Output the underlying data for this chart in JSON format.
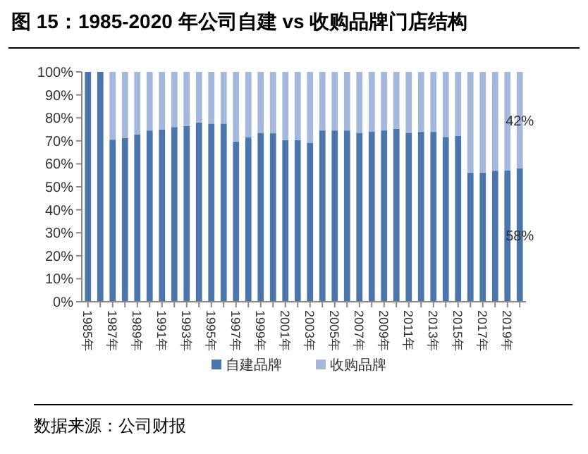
{
  "chart_data": {
    "type": "bar",
    "stacked": true,
    "title": "图 15：1985-2020 年公司自建 vs 收购品牌门店结构",
    "categories": [
      "1985年",
      null,
      "1987年",
      null,
      "1989年",
      null,
      "1991年",
      null,
      "1993年",
      null,
      "1995年",
      null,
      "1997年",
      null,
      "1999年",
      null,
      "2001年",
      null,
      "2003年",
      null,
      "2005年",
      null,
      "2007年",
      null,
      "2009年",
      null,
      "2011年",
      null,
      "2013年",
      null,
      "2015年",
      null,
      "2017年",
      null,
      "2019年",
      null
    ],
    "series": [
      {
        "name": "自建品牌",
        "color": "#4a76ab",
        "values": [
          100,
          100,
          70.5,
          71.3,
          72.7,
          74.5,
          75,
          76,
          76.5,
          78,
          77.5,
          77.5,
          69.7,
          71.5,
          73.5,
          73.3,
          70.3,
          70.3,
          69.2,
          74.5,
          74.5,
          74.5,
          73.5,
          74.1,
          74.5,
          75.2,
          73.5,
          73.9,
          73.9,
          71.7,
          72.1,
          56.2,
          56.2,
          57,
          57.2,
          58
        ],
        "value_labels": [
          null,
          null,
          null,
          null,
          null,
          null,
          null,
          null,
          null,
          null,
          null,
          null,
          null,
          null,
          null,
          null,
          null,
          null,
          null,
          null,
          null,
          null,
          null,
          null,
          null,
          null,
          null,
          null,
          null,
          null,
          null,
          null,
          null,
          null,
          null,
          "58%"
        ]
      },
      {
        "name": "收购品牌",
        "color": "#a3b8db",
        "values": [
          0,
          0,
          29.5,
          28.7,
          27.3,
          25.5,
          25,
          24,
          23.5,
          22,
          22.5,
          22.5,
          30.3,
          28.5,
          26.5,
          26.7,
          29.7,
          29.7,
          30.8,
          25.5,
          25.5,
          25.5,
          26.5,
          25.9,
          25.5,
          24.8,
          26.5,
          26.1,
          26.1,
          28.3,
          27.9,
          43.8,
          43.8,
          43,
          42.8,
          42
        ],
        "value_labels": [
          null,
          null,
          null,
          null,
          null,
          null,
          null,
          null,
          null,
          null,
          null,
          null,
          null,
          null,
          null,
          null,
          null,
          null,
          null,
          null,
          null,
          null,
          null,
          null,
          null,
          null,
          null,
          null,
          null,
          null,
          null,
          null,
          null,
          null,
          null,
          "42%"
        ]
      }
    ],
    "ylim": [
      0,
      100
    ],
    "yticks": [
      {
        "value": 0,
        "label": "0%"
      },
      {
        "value": 10,
        "label": "10%"
      },
      {
        "value": 20,
        "label": "20%"
      },
      {
        "value": 30,
        "label": "30%"
      },
      {
        "value": 40,
        "label": "40%"
      },
      {
        "value": 50,
        "label": "50%"
      },
      {
        "value": 60,
        "label": "60%"
      },
      {
        "value": 70,
        "label": "70%"
      },
      {
        "value": 80,
        "label": "80%"
      },
      {
        "value": 90,
        "label": "90%"
      },
      {
        "value": 100,
        "label": "100%"
      }
    ],
    "grid": false,
    "legend": "bottom",
    "annotations": [
      "数据来源：公司财报"
    ]
  }
}
